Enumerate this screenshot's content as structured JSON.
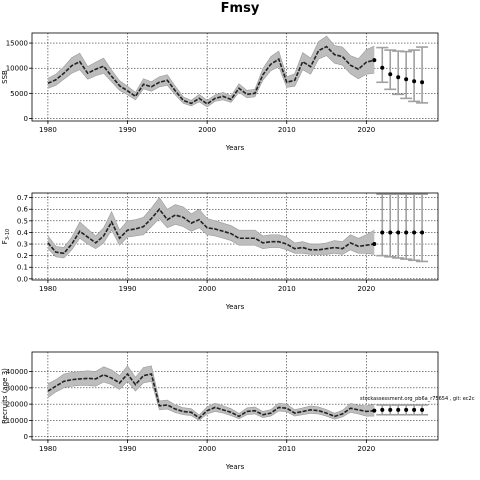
{
  "title": "Fmsy",
  "annotation": "stockassessment.org_pb6a_r75654 , git: ec2c",
  "colors": {
    "band": "#bdbdbd",
    "line": "#222222",
    "grid": "#000000",
    "proj": "#a0a0a0",
    "point": "#000000"
  },
  "chart_data": [
    {
      "type": "line",
      "xlabel": "Years",
      "ylabel": "SSB",
      "xlim": [
        1978,
        2029
      ],
      "ylim": [
        -500,
        17000
      ],
      "xticks": [
        1980,
        1990,
        2000,
        2010,
        2020
      ],
      "yticks": [
        0,
        5000,
        10000,
        15000
      ],
      "ytick_labels": [
        "0",
        "5000",
        "10000",
        "15000"
      ],
      "grid": true,
      "series": [
        {
          "role": "estimate",
          "x": [
            1980,
            1981,
            1982,
            1983,
            1984,
            1985,
            1986,
            1987,
            1988,
            1989,
            1990,
            1991,
            1992,
            1993,
            1994,
            1995,
            1996,
            1997,
            1998,
            1999,
            2000,
            2001,
            2002,
            2003,
            2004,
            2005,
            2006,
            2007,
            2008,
            2009,
            2010,
            2011,
            2012,
            2013,
            2014,
            2015,
            2016,
            2017,
            2018,
            2019,
            2020,
            2021
          ],
          "y": [
            7000,
            7700,
            9000,
            10500,
            11300,
            9000,
            9800,
            10400,
            8400,
            6500,
            5500,
            4400,
            6800,
            6300,
            7200,
            7600,
            5500,
            3600,
            3000,
            4000,
            2900,
            4000,
            4400,
            3800,
            6000,
            4800,
            5000,
            8700,
            10800,
            11800,
            7200,
            7600,
            11300,
            10300,
            13500,
            14300,
            12700,
            12300,
            10600,
            9800,
            11200,
            11600
          ],
          "lower": [
            6000,
            6600,
            7800,
            9000,
            9700,
            7800,
            8500,
            9000,
            7300,
            5600,
            4700,
            3700,
            5900,
            5400,
            6300,
            6600,
            4700,
            3000,
            2500,
            3300,
            2300,
            3400,
            3700,
            3200,
            5200,
            4100,
            4300,
            7600,
            9500,
            10300,
            6200,
            6400,
            9700,
            8800,
            11800,
            12500,
            11000,
            10600,
            8900,
            7900,
            8800,
            9000
          ],
          "upper": [
            8000,
            8800,
            10300,
            12100,
            13000,
            10300,
            11200,
            12000,
            9600,
            7500,
            6400,
            5200,
            7900,
            7300,
            8300,
            8700,
            6400,
            4300,
            3600,
            4800,
            3600,
            4700,
            5200,
            4500,
            6900,
            5600,
            5800,
            9900,
            12300,
            13400,
            8300,
            8900,
            13100,
            12000,
            15300,
            16400,
            14500,
            14200,
            12500,
            11900,
            13700,
            14400
          ]
        },
        {
          "role": "projection",
          "x": [
            2022,
            2023,
            2024,
            2025,
            2026,
            2027
          ],
          "y": [
            10100,
            8800,
            8200,
            7800,
            7400,
            7200
          ],
          "lower": [
            7200,
            5800,
            4800,
            4000,
            3400,
            3100
          ],
          "upper": [
            14100,
            13600,
            13400,
            13300,
            13600,
            14200
          ]
        }
      ]
    },
    {
      "type": "line",
      "xlabel": "Years",
      "ylabel": "F3-10",
      "ylabel_main": "F",
      "ylabel_sub": "3-10",
      "xlim": [
        1978,
        2029
      ],
      "ylim": [
        -0.01,
        0.74
      ],
      "xticks": [
        1980,
        1990,
        2000,
        2010,
        2020
      ],
      "yticks": [
        0,
        0.1,
        0.2,
        0.3,
        0.4,
        0.5,
        0.6,
        0.7
      ],
      "ytick_labels": [
        "0.0",
        "0.1",
        "0.2",
        "0.3",
        "0.4",
        "0.5",
        "0.6",
        "0.7"
      ],
      "grid": true,
      "series": [
        {
          "role": "estimate",
          "x": [
            1980,
            1981,
            1982,
            1983,
            1984,
            1985,
            1986,
            1987,
            1988,
            1989,
            1990,
            1991,
            1992,
            1993,
            1994,
            1995,
            1996,
            1997,
            1998,
            1999,
            2000,
            2001,
            2002,
            2003,
            2004,
            2005,
            2006,
            2007,
            2008,
            2009,
            2010,
            2011,
            2012,
            2013,
            2014,
            2015,
            2016,
            2017,
            2018,
            2019,
            2020,
            2021
          ],
          "y": [
            0.31,
            0.23,
            0.22,
            0.3,
            0.41,
            0.36,
            0.31,
            0.37,
            0.49,
            0.35,
            0.42,
            0.43,
            0.45,
            0.52,
            0.6,
            0.51,
            0.55,
            0.53,
            0.48,
            0.51,
            0.44,
            0.43,
            0.41,
            0.39,
            0.35,
            0.35,
            0.35,
            0.31,
            0.32,
            0.32,
            0.3,
            0.26,
            0.27,
            0.25,
            0.25,
            0.26,
            0.27,
            0.26,
            0.31,
            0.28,
            0.29,
            0.3
          ],
          "lower": [
            0.26,
            0.19,
            0.18,
            0.25,
            0.35,
            0.3,
            0.26,
            0.31,
            0.42,
            0.29,
            0.36,
            0.37,
            0.38,
            0.45,
            0.52,
            0.44,
            0.47,
            0.45,
            0.41,
            0.44,
            0.38,
            0.37,
            0.35,
            0.33,
            0.29,
            0.29,
            0.29,
            0.26,
            0.27,
            0.27,
            0.25,
            0.22,
            0.22,
            0.21,
            0.21,
            0.21,
            0.22,
            0.21,
            0.25,
            0.22,
            0.22,
            0.21
          ],
          "upper": [
            0.37,
            0.28,
            0.27,
            0.36,
            0.49,
            0.43,
            0.37,
            0.44,
            0.58,
            0.42,
            0.5,
            0.51,
            0.53,
            0.61,
            0.7,
            0.6,
            0.64,
            0.62,
            0.56,
            0.6,
            0.52,
            0.5,
            0.48,
            0.46,
            0.42,
            0.42,
            0.42,
            0.37,
            0.38,
            0.38,
            0.36,
            0.31,
            0.32,
            0.3,
            0.3,
            0.31,
            0.33,
            0.32,
            0.38,
            0.35,
            0.38,
            0.42
          ]
        },
        {
          "role": "projection",
          "x": [
            2022,
            2023,
            2024,
            2025,
            2026,
            2027
          ],
          "y": [
            0.4,
            0.4,
            0.4,
            0.4,
            0.4,
            0.4
          ],
          "lower": [
            0.2,
            0.19,
            0.18,
            0.17,
            0.16,
            0.15
          ],
          "upper": [
            0.73,
            0.73,
            0.73,
            0.73,
            0.73,
            0.73
          ]
        }
      ]
    },
    {
      "type": "line",
      "xlabel": "Years",
      "ylabel": "Recruits (age 3)",
      "xlim": [
        1978,
        2029
      ],
      "ylim": [
        -2000,
        52000
      ],
      "xticks": [
        1980,
        1990,
        2000,
        2010,
        2020
      ],
      "yticks": [
        0,
        10000,
        20000,
        30000,
        40000
      ],
      "ytick_labels": [
        "0",
        "10000",
        "20000",
        "30000",
        "40000"
      ],
      "grid": true,
      "series": [
        {
          "role": "estimate",
          "x": [
            1980,
            1981,
            1982,
            1983,
            1984,
            1985,
            1986,
            1987,
            1988,
            1989,
            1990,
            1991,
            1992,
            1993,
            1994,
            1995,
            1996,
            1997,
            1998,
            1999,
            2000,
            2001,
            2002,
            2003,
            2004,
            2005,
            2006,
            2007,
            2008,
            2009,
            2010,
            2011,
            2012,
            2013,
            2014,
            2015,
            2016,
            2017,
            2018,
            2019,
            2020,
            2021
          ],
          "y": [
            28000,
            31000,
            34000,
            35000,
            35500,
            35800,
            35500,
            38000,
            36000,
            33000,
            38500,
            32000,
            37500,
            38500,
            19000,
            19500,
            17000,
            15500,
            15000,
            11500,
            16000,
            18000,
            16500,
            15000,
            12500,
            15500,
            16000,
            13500,
            14500,
            18000,
            17500,
            14500,
            15500,
            16500,
            16000,
            14500,
            12500,
            14000,
            17500,
            16500,
            15500,
            16000
          ],
          "lower": [
            24000,
            27500,
            30000,
            31000,
            31500,
            31500,
            31000,
            33500,
            32000,
            29000,
            34000,
            28000,
            33000,
            34000,
            16500,
            17000,
            14800,
            13500,
            13000,
            10000,
            14000,
            15500,
            14500,
            13000,
            11000,
            13500,
            14000,
            11800,
            12700,
            15800,
            15300,
            12700,
            13500,
            14400,
            14000,
            12600,
            10800,
            12100,
            15000,
            14000,
            12600,
            12700
          ],
          "upper": [
            32500,
            35000,
            38500,
            39500,
            40000,
            40500,
            40000,
            43000,
            41000,
            37500,
            43500,
            36500,
            42500,
            43500,
            22000,
            22500,
            19500,
            17800,
            17200,
            13300,
            18300,
            20600,
            18900,
            17200,
            14300,
            17700,
            18300,
            15500,
            16600,
            20600,
            20000,
            16600,
            17700,
            18900,
            18300,
            16600,
            14400,
            16200,
            20400,
            19400,
            19000,
            20000
          ]
        },
        {
          "role": "projection",
          "x": [
            2022,
            2023,
            2024,
            2025,
            2026,
            2027
          ],
          "y": [
            16500,
            16500,
            16500,
            16500,
            16500,
            16500
          ],
          "lower": [
            13500,
            13500,
            13500,
            13500,
            13500,
            13500
          ],
          "upper": [
            19500,
            19500,
            19500,
            19500,
            19500,
            19500
          ]
        }
      ]
    }
  ]
}
